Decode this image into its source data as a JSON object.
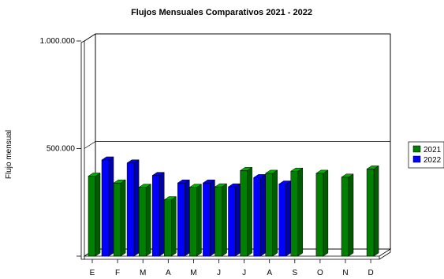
{
  "chart_data": {
    "type": "bar",
    "title": "Flujos Mensuales Comparativos 2021 - 2022",
    "ylabel": "Flujo mensual",
    "xlabel": "",
    "ylim": [
      0,
      1000000
    ],
    "yticks": [
      {
        "value": 500000,
        "label": "500.000"
      },
      {
        "value": 1000000,
        "label": "1.000.000"
      }
    ],
    "grid": true,
    "legend": "right",
    "categories": [
      "E",
      "F",
      "M",
      "A",
      "M",
      "J",
      "J",
      "A",
      "S",
      "O",
      "N",
      "D"
    ],
    "series": [
      {
        "name": "2021",
        "color": "#008000",
        "values": [
          372000,
          340000,
          320000,
          262000,
          320000,
          322000,
          398000,
          385000,
          395000,
          385000,
          367000,
          405000
        ]
      },
      {
        "name": "2022",
        "color": "#0000ff",
        "values": [
          447000,
          433000,
          375000,
          340000,
          340000,
          322000,
          365000,
          335000,
          null,
          null,
          null,
          null
        ]
      }
    ]
  }
}
